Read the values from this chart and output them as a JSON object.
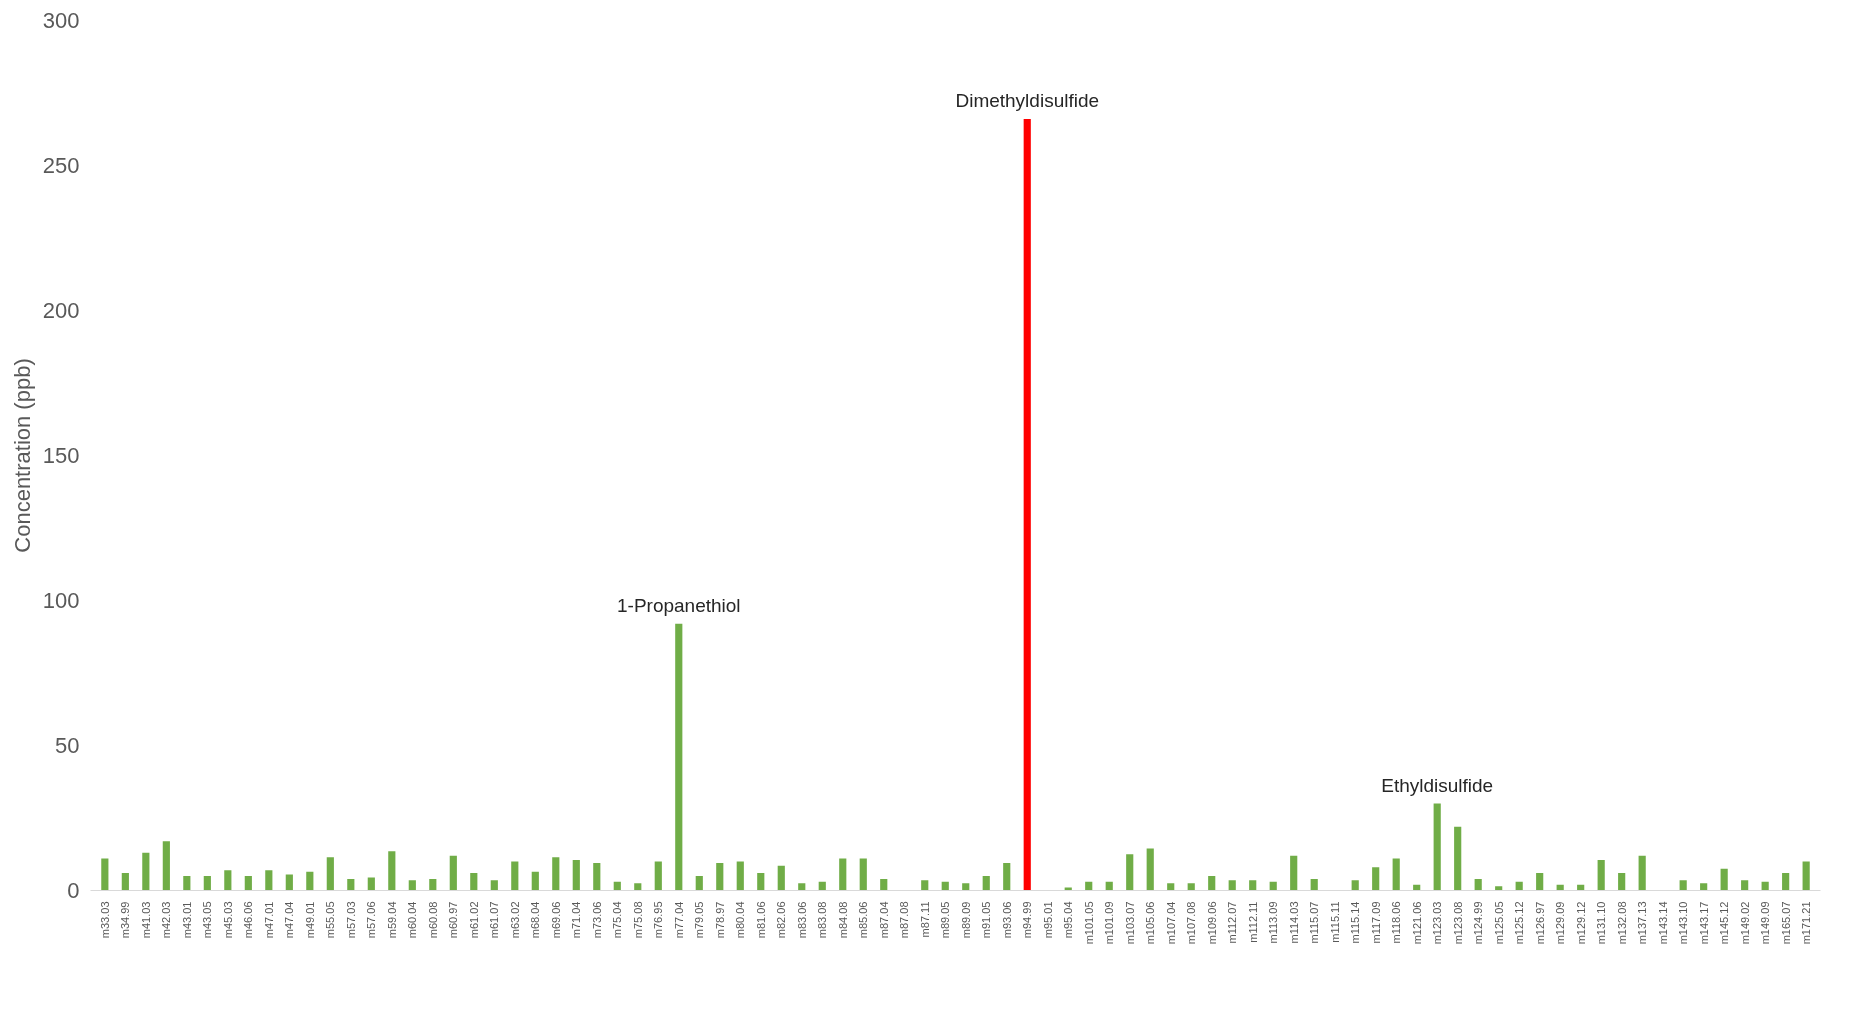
{
  "chart_data": {
    "type": "bar",
    "ylabel": "Concentration (ppb)",
    "categories": [
      "m33.03",
      "m34.99",
      "m41.03",
      "m42.03",
      "m43.01",
      "m43.05",
      "m45.03",
      "m46.06",
      "m47.01",
      "m47.04",
      "m49.01",
      "m55.05",
      "m57.03",
      "m57.06",
      "m59.04",
      "m60.04",
      "m60.08",
      "m60.97",
      "m61.02",
      "m61.07",
      "m63.02",
      "m68.04",
      "m69.06",
      "m71.04",
      "m73.06",
      "m75.04",
      "m75.08",
      "m76.95",
      "m77.04",
      "m79.05",
      "m78.97",
      "m80.04",
      "m81.06",
      "m82.06",
      "m83.06",
      "m83.08",
      "m84.08",
      "m85.06",
      "m87.04",
      "m87.08",
      "m87.11",
      "m89.05",
      "m89.09",
      "m91.05",
      "m93.06",
      "m94.99",
      "m95.01",
      "m95.04",
      "m101.05",
      "m101.09",
      "m103.07",
      "m105.06",
      "m107.04",
      "m107.08",
      "m109.06",
      "m112.07",
      "m112.11",
      "m113.09",
      "m114.03",
      "m115.07",
      "m115.11",
      "m115.14",
      "m117.09",
      "m118.06",
      "m121.06",
      "m123.03",
      "m123.08",
      "m124.99",
      "m125.05",
      "m125.12",
      "m126.97",
      "m129.09",
      "m129.12",
      "m131.10",
      "m132.08",
      "m137.13",
      "m143.14",
      "m143.10",
      "m143.17",
      "m145.12",
      "m149.02",
      "m149.09",
      "m165.07",
      "m171.21"
    ],
    "values": [
      11,
      6,
      13,
      17,
      5,
      5,
      7,
      5,
      7,
      5.5,
      6.5,
      11.5,
      4,
      4.5,
      13.5,
      3.5,
      4,
      12,
      6,
      3.5,
      10,
      6.5,
      11.5,
      10.5,
      9.5,
      3,
      2.5,
      10,
      92,
      5,
      9.5,
      10,
      6,
      8.5,
      2.5,
      3,
      11,
      11,
      4,
      0,
      3.5,
      3,
      2.5,
      5,
      9.5,
      266,
      0,
      1,
      3,
      3,
      12.5,
      14.5,
      2.5,
      2.5,
      5,
      3.5,
      3.5,
      3,
      12,
      4,
      0,
      3.5,
      8,
      11,
      2,
      30,
      22,
      4,
      1.5,
      3,
      6,
      2,
      2,
      10.5,
      6,
      12,
      0,
      3.5,
      2.5,
      7.5,
      3.5,
      3,
      6,
      10
    ],
    "colors": [
      "#70ad47",
      "#70ad47",
      "#70ad47",
      "#70ad47",
      "#70ad47",
      "#70ad47",
      "#70ad47",
      "#70ad47",
      "#70ad47",
      "#70ad47",
      "#70ad47",
      "#70ad47",
      "#70ad47",
      "#70ad47",
      "#70ad47",
      "#70ad47",
      "#70ad47",
      "#70ad47",
      "#70ad47",
      "#70ad47",
      "#70ad47",
      "#70ad47",
      "#70ad47",
      "#70ad47",
      "#70ad47",
      "#70ad47",
      "#70ad47",
      "#70ad47",
      "#70ad47",
      "#70ad47",
      "#70ad47",
      "#70ad47",
      "#70ad47",
      "#70ad47",
      "#70ad47",
      "#70ad47",
      "#70ad47",
      "#70ad47",
      "#70ad47",
      "#70ad47",
      "#70ad47",
      "#70ad47",
      "#70ad47",
      "#70ad47",
      "#70ad47",
      "#ff0000",
      "#70ad47",
      "#70ad47",
      "#70ad47",
      "#70ad47",
      "#70ad47",
      "#70ad47",
      "#70ad47",
      "#70ad47",
      "#70ad47",
      "#70ad47",
      "#70ad47",
      "#70ad47",
      "#70ad47",
      "#70ad47",
      "#70ad47",
      "#70ad47",
      "#70ad47",
      "#70ad47",
      "#70ad47",
      "#70ad47",
      "#70ad47",
      "#70ad47",
      "#70ad47",
      "#70ad47",
      "#70ad47",
      "#70ad47",
      "#70ad47",
      "#70ad47",
      "#70ad47",
      "#70ad47",
      "#70ad47",
      "#70ad47",
      "#70ad47",
      "#70ad47",
      "#70ad47",
      "#70ad47",
      "#70ad47",
      "#70ad47"
    ],
    "ylim": [
      0,
      300
    ],
    "yticks": [
      0,
      50,
      100,
      150,
      200,
      250,
      300
    ],
    "grid": false,
    "annotations": [
      {
        "text": "1-Propanethiol",
        "x": "m77.04",
        "y": 92
      },
      {
        "text": "Dimethyldisulfide",
        "x": "m94.99",
        "y": 266
      },
      {
        "text": "Ethyldisulfide",
        "x": "m123.03",
        "y": 30
      }
    ]
  }
}
